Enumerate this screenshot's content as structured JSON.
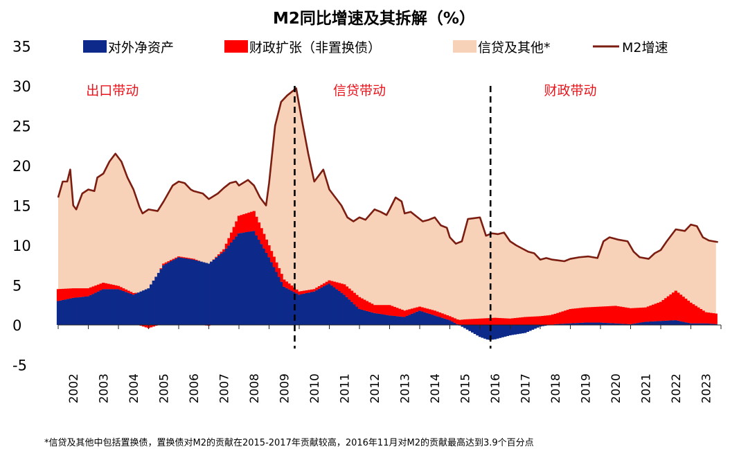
{
  "chart_data": {
    "type": "area",
    "title": "M2同比增速及其拆解（%）",
    "xlabel": "",
    "ylabel": "",
    "ylim": [
      -5,
      35
    ],
    "xlim": [
      2002,
      2024
    ],
    "yticks": [
      -5,
      0,
      5,
      10,
      15,
      20,
      25,
      30,
      35
    ],
    "xticks": [
      "2002",
      "2003",
      "2004",
      "2005",
      "2006",
      "2007",
      "2008",
      "2009",
      "2010",
      "2011",
      "2012",
      "2013",
      "2014",
      "2015",
      "2016",
      "2017",
      "2018",
      "2019",
      "2020",
      "2021",
      "2022",
      "2023"
    ],
    "legend_position": "top",
    "grid": false,
    "colors": {
      "net_foreign_assets": "#0d2a8a",
      "fiscal_expansion": "#ff0000",
      "credit_other": "#f8d2b8",
      "m2_line": "#7b1d10",
      "regime_region_text": "#e8141c"
    },
    "series": [
      {
        "name": "对外净资产",
        "key": "net_foreign_assets",
        "style": "stacked-bar",
        "points": [
          [
            2002.0,
            3.0
          ],
          [
            2002.5,
            3.4
          ],
          [
            2003.0,
            3.6
          ],
          [
            2003.5,
            4.5
          ],
          [
            2004.0,
            4.5
          ],
          [
            2004.5,
            3.8
          ],
          [
            2005.0,
            4.6
          ],
          [
            2005.5,
            7.5
          ],
          [
            2006.0,
            8.5
          ],
          [
            2006.5,
            8.2
          ],
          [
            2007.0,
            7.7
          ],
          [
            2007.5,
            9.2
          ],
          [
            2008.0,
            11.5
          ],
          [
            2008.5,
            11.8
          ],
          [
            2009.0,
            8.5
          ],
          [
            2009.5,
            4.8
          ],
          [
            2010.0,
            3.8
          ],
          [
            2010.5,
            4.2
          ],
          [
            2011.0,
            5.2
          ],
          [
            2011.5,
            3.8
          ],
          [
            2012.0,
            2.0
          ],
          [
            2012.5,
            1.5
          ],
          [
            2013.0,
            1.2
          ],
          [
            2013.5,
            1.0
          ],
          [
            2014.0,
            1.8
          ],
          [
            2014.5,
            1.2
          ],
          [
            2015.0,
            0.6
          ],
          [
            2015.5,
            -0.4
          ],
          [
            2016.0,
            -1.5
          ],
          [
            2016.3,
            -1.9
          ],
          [
            2016.5,
            -1.8
          ],
          [
            2017.0,
            -1.3
          ],
          [
            2017.5,
            -1.0
          ],
          [
            2018.0,
            -0.2
          ],
          [
            2018.5,
            0.1
          ],
          [
            2019.0,
            0.2
          ],
          [
            2019.5,
            0.3
          ],
          [
            2020.0,
            0.3
          ],
          [
            2020.5,
            0.2
          ],
          [
            2021.0,
            0.1
          ],
          [
            2021.5,
            0.4
          ],
          [
            2022.0,
            0.5
          ],
          [
            2022.5,
            0.6
          ],
          [
            2023.0,
            0.2
          ],
          [
            2023.5,
            0.2
          ],
          [
            2023.9,
            0.1
          ]
        ]
      },
      {
        "name": "财政扩张（非置换债）",
        "key": "fiscal_expansion",
        "style": "stacked-bar",
        "points": [
          [
            2002.0,
            1.5
          ],
          [
            2002.5,
            1.2
          ],
          [
            2003.0,
            1.0
          ],
          [
            2003.5,
            0.8
          ],
          [
            2004.0,
            0.4
          ],
          [
            2004.5,
            0.2
          ],
          [
            2005.0,
            -0.4
          ],
          [
            2005.5,
            0.2
          ],
          [
            2006.0,
            0.1
          ],
          [
            2006.5,
            0.1
          ],
          [
            2007.0,
            -0.1
          ],
          [
            2007.5,
            0.3
          ],
          [
            2008.0,
            2.2
          ],
          [
            2008.5,
            2.5
          ],
          [
            2009.0,
            1.5
          ],
          [
            2009.5,
            0.9
          ],
          [
            2010.0,
            0.4
          ],
          [
            2010.5,
            0.3
          ],
          [
            2011.0,
            0.4
          ],
          [
            2011.5,
            1.3
          ],
          [
            2012.0,
            1.5
          ],
          [
            2012.5,
            1.0
          ],
          [
            2013.0,
            1.3
          ],
          [
            2013.5,
            0.8
          ],
          [
            2014.0,
            0.5
          ],
          [
            2014.5,
            0.6
          ],
          [
            2015.0,
            0.5
          ],
          [
            2015.5,
            0.7
          ],
          [
            2016.0,
            0.8
          ],
          [
            2016.5,
            0.9
          ],
          [
            2017.0,
            0.8
          ],
          [
            2017.5,
            1.0
          ],
          [
            2018.0,
            1.1
          ],
          [
            2018.5,
            1.3
          ],
          [
            2019.0,
            1.8
          ],
          [
            2019.5,
            1.9
          ],
          [
            2020.0,
            2.0
          ],
          [
            2020.5,
            2.2
          ],
          [
            2021.0,
            2.0
          ],
          [
            2021.5,
            1.8
          ],
          [
            2022.0,
            2.4
          ],
          [
            2022.5,
            3.7
          ],
          [
            2023.0,
            2.6
          ],
          [
            2023.5,
            1.4
          ],
          [
            2023.9,
            1.3
          ]
        ]
      },
      {
        "name": "信贷及其他*",
        "key": "credit_other",
        "style": "stacked-area"
      },
      {
        "name": "M2增速",
        "key": "m2_line",
        "style": "line",
        "points": [
          [
            2002.0,
            16.0
          ],
          [
            2002.15,
            18.0
          ],
          [
            2002.3,
            18.0
          ],
          [
            2002.4,
            19.5
          ],
          [
            2002.5,
            15.0
          ],
          [
            2002.6,
            14.5
          ],
          [
            2002.8,
            16.5
          ],
          [
            2003.0,
            17.0
          ],
          [
            2003.2,
            16.8
          ],
          [
            2003.3,
            18.5
          ],
          [
            2003.5,
            19.0
          ],
          [
            2003.7,
            20.5
          ],
          [
            2003.9,
            21.5
          ],
          [
            2004.1,
            20.5
          ],
          [
            2004.3,
            18.5
          ],
          [
            2004.5,
            17.0
          ],
          [
            2004.7,
            14.8
          ],
          [
            2004.8,
            14.0
          ],
          [
            2005.0,
            14.5
          ],
          [
            2005.3,
            14.3
          ],
          [
            2005.5,
            15.5
          ],
          [
            2005.8,
            17.5
          ],
          [
            2006.0,
            18.0
          ],
          [
            2006.2,
            17.8
          ],
          [
            2006.4,
            17.0
          ],
          [
            2006.5,
            16.8
          ],
          [
            2006.8,
            16.5
          ],
          [
            2007.0,
            15.8
          ],
          [
            2007.3,
            16.5
          ],
          [
            2007.5,
            17.2
          ],
          [
            2007.7,
            17.8
          ],
          [
            2007.9,
            18.0
          ],
          [
            2008.0,
            17.5
          ],
          [
            2008.3,
            18.2
          ],
          [
            2008.5,
            17.5
          ],
          [
            2008.7,
            16.0
          ],
          [
            2008.9,
            15.0
          ],
          [
            2009.0,
            17.8
          ],
          [
            2009.2,
            25.0
          ],
          [
            2009.4,
            28.0
          ],
          [
            2009.6,
            28.8
          ],
          [
            2009.9,
            29.7
          ],
          [
            2010.1,
            25.5
          ],
          [
            2010.3,
            21.5
          ],
          [
            2010.5,
            18.0
          ],
          [
            2010.8,
            19.5
          ],
          [
            2011.0,
            17.0
          ],
          [
            2011.2,
            16.0
          ],
          [
            2011.4,
            15.0
          ],
          [
            2011.6,
            13.5
          ],
          [
            2011.8,
            13.0
          ],
          [
            2012.0,
            13.5
          ],
          [
            2012.2,
            13.2
          ],
          [
            2012.5,
            14.5
          ],
          [
            2012.7,
            14.2
          ],
          [
            2012.9,
            13.8
          ],
          [
            2013.0,
            14.5
          ],
          [
            2013.2,
            16.0
          ],
          [
            2013.4,
            15.5
          ],
          [
            2013.5,
            14.0
          ],
          [
            2013.7,
            14.2
          ],
          [
            2013.9,
            13.6
          ],
          [
            2014.1,
            13.0
          ],
          [
            2014.3,
            13.2
          ],
          [
            2014.5,
            13.5
          ],
          [
            2014.7,
            12.5
          ],
          [
            2014.9,
            12.2
          ],
          [
            2015.0,
            11.0
          ],
          [
            2015.2,
            10.2
          ],
          [
            2015.4,
            10.5
          ],
          [
            2015.6,
            13.3
          ],
          [
            2015.8,
            13.4
          ],
          [
            2016.0,
            13.5
          ],
          [
            2016.2,
            11.2
          ],
          [
            2016.4,
            11.5
          ],
          [
            2016.6,
            11.4
          ],
          [
            2016.8,
            11.6
          ],
          [
            2017.0,
            10.5
          ],
          [
            2017.2,
            10.0
          ],
          [
            2017.4,
            9.6
          ],
          [
            2017.6,
            9.2
          ],
          [
            2017.8,
            9.0
          ],
          [
            2018.0,
            8.2
          ],
          [
            2018.2,
            8.4
          ],
          [
            2018.4,
            8.2
          ],
          [
            2018.6,
            8.1
          ],
          [
            2018.8,
            8.0
          ],
          [
            2019.0,
            8.3
          ],
          [
            2019.3,
            8.5
          ],
          [
            2019.6,
            8.6
          ],
          [
            2019.9,
            8.4
          ],
          [
            2020.1,
            10.5
          ],
          [
            2020.3,
            11.0
          ],
          [
            2020.6,
            10.7
          ],
          [
            2020.9,
            10.5
          ],
          [
            2021.1,
            9.2
          ],
          [
            2021.3,
            8.5
          ],
          [
            2021.6,
            8.3
          ],
          [
            2021.8,
            9.0
          ],
          [
            2022.0,
            9.4
          ],
          [
            2022.2,
            10.5
          ],
          [
            2022.5,
            12.0
          ],
          [
            2022.8,
            11.8
          ],
          [
            2023.0,
            12.6
          ],
          [
            2023.2,
            12.4
          ],
          [
            2023.4,
            11.0
          ],
          [
            2023.6,
            10.6
          ],
          [
            2023.9,
            10.4
          ]
        ]
      }
    ],
    "annotations": [
      {
        "text": "出口带动",
        "x": 2003.8,
        "y": 29.5
      },
      {
        "text": "信贷带动",
        "x": 2012.0,
        "y": 29.5
      },
      {
        "text": "财政带动",
        "x": 2019.0,
        "y": 29.5
      }
    ],
    "dividers": [
      2009.85,
      2016.35
    ],
    "footnote": "*信贷及其他中包括置换债，置换债对M2的贡献在2015-2017年贡献较高，2016年11月对M2的贡献最高达到3.9个百分点"
  }
}
